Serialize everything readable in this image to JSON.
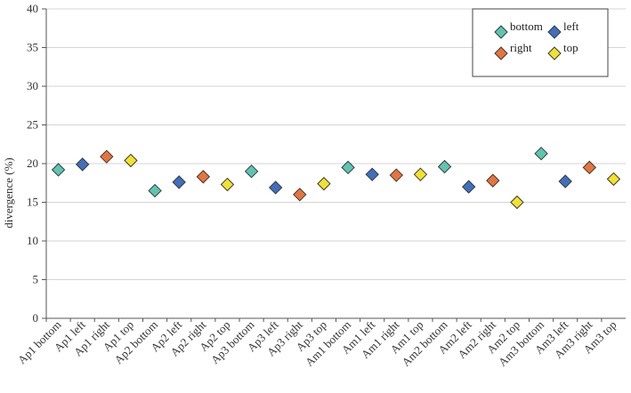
{
  "chart_data": {
    "type": "scatter",
    "ylabel": "divergence (%)",
    "xlabel": "",
    "ylim": [
      0,
      40
    ],
    "yticks": [
      0,
      5,
      10,
      15,
      20,
      25,
      30,
      35,
      40
    ],
    "grid": true,
    "legend_placement": "top-right",
    "marker": "diamond",
    "categories": [
      "Ap1 bottom",
      "Ap1 left",
      "Ap1 right",
      "Ap1 top",
      "Ap2 bottom",
      "Ap2 left",
      "Ap2 right",
      "Ap2 top",
      "Ap3 bottom",
      "Ap3 left",
      "Ap3 right",
      "Ap3 top",
      "Am1 bottom",
      "Am1 left",
      "Am1 right",
      "Am1 top",
      "Am2 bottom",
      "Am2 left",
      "Am2 right",
      "Am2 top",
      "Am3 bottom",
      "Am3 left",
      "Am3 right",
      "Am3 top"
    ],
    "series": [
      {
        "name": "bottom",
        "color": "#5cc6b0",
        "points": [
          {
            "x": "Ap1 bottom",
            "y": 19.2
          },
          {
            "x": "Ap2 bottom",
            "y": 16.5
          },
          {
            "x": "Ap3 bottom",
            "y": 19.0
          },
          {
            "x": "Am1 bottom",
            "y": 19.5
          },
          {
            "x": "Am2 bottom",
            "y": 19.6
          },
          {
            "x": "Am3 bottom",
            "y": 21.3
          }
        ]
      },
      {
        "name": "left",
        "color": "#3f6fbf",
        "points": [
          {
            "x": "Ap1 left",
            "y": 19.9
          },
          {
            "x": "Ap2 left",
            "y": 17.6
          },
          {
            "x": "Ap3 left",
            "y": 16.9
          },
          {
            "x": "Am1 left",
            "y": 18.6
          },
          {
            "x": "Am2 left",
            "y": 17.0
          },
          {
            "x": "Am3 left",
            "y": 17.7
          }
        ]
      },
      {
        "name": "right",
        "color": "#e8743b",
        "points": [
          {
            "x": "Ap1 right",
            "y": 20.9
          },
          {
            "x": "Ap2 right",
            "y": 18.3
          },
          {
            "x": "Ap3 right",
            "y": 16.0
          },
          {
            "x": "Am1 right",
            "y": 18.5
          },
          {
            "x": "Am2 right",
            "y": 17.8
          },
          {
            "x": "Am3 right",
            "y": 19.5
          }
        ]
      },
      {
        "name": "top",
        "color": "#f2e22b",
        "points": [
          {
            "x": "Ap1 top",
            "y": 20.4
          },
          {
            "x": "Ap2 top",
            "y": 17.3
          },
          {
            "x": "Ap3 top",
            "y": 17.4
          },
          {
            "x": "Am1 top",
            "y": 18.6
          },
          {
            "x": "Am2 top",
            "y": 15.0
          },
          {
            "x": "Am3 top",
            "y": 18.0
          }
        ]
      }
    ]
  }
}
